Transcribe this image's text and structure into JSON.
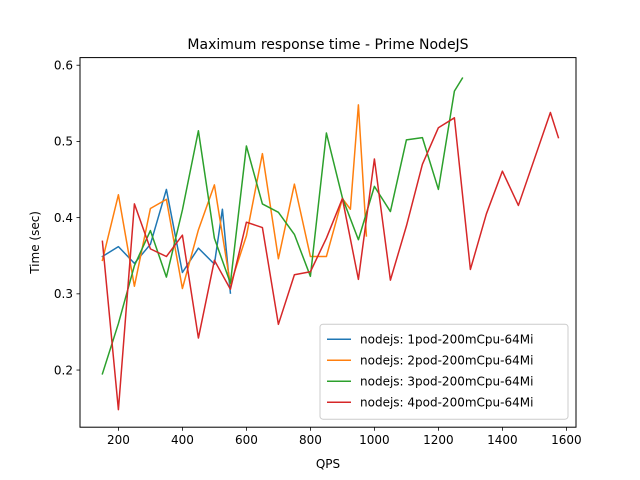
{
  "chart_data": {
    "type": "line",
    "title": "Maximum response time - Prime NodeJS",
    "xlabel": "QPS",
    "ylabel": "Time (sec)",
    "xlim": [
      80,
      1630
    ],
    "ylim": [
      0.125,
      0.61
    ],
    "xticks": [
      200,
      400,
      600,
      800,
      1000,
      1200,
      1400,
      1600
    ],
    "yticks": [
      0.2,
      0.3,
      0.4,
      0.5,
      0.6
    ],
    "grid": false,
    "legend_position": "lower-right",
    "series": [
      {
        "name": "nodejs: 1pod-200mCpu-64Mi",
        "color": "#1f77b4",
        "points": [
          [
            150,
            0.349
          ],
          [
            200,
            0.362
          ],
          [
            250,
            0.34
          ],
          [
            300,
            0.365
          ],
          [
            350,
            0.437
          ],
          [
            400,
            0.328
          ],
          [
            450,
            0.36
          ],
          [
            500,
            0.339
          ],
          [
            525,
            0.411
          ],
          [
            550,
            0.301
          ]
        ]
      },
      {
        "name": "nodejs: 2pod-200mCpu-64Mi",
        "color": "#ff7f0e",
        "points": [
          [
            150,
            0.344
          ],
          [
            200,
            0.43
          ],
          [
            250,
            0.31
          ],
          [
            300,
            0.412
          ],
          [
            350,
            0.424
          ],
          [
            400,
            0.307
          ],
          [
            450,
            0.384
          ],
          [
            500,
            0.443
          ],
          [
            550,
            0.312
          ],
          [
            600,
            0.376
          ],
          [
            650,
            0.484
          ],
          [
            700,
            0.346
          ],
          [
            750,
            0.444
          ],
          [
            800,
            0.349
          ],
          [
            850,
            0.349
          ],
          [
            900,
            0.425
          ],
          [
            925,
            0.411
          ],
          [
            950,
            0.548
          ],
          [
            975,
            0.376
          ]
        ]
      },
      {
        "name": "nodejs: 3pod-200mCpu-64Mi",
        "color": "#2ca02c",
        "points": [
          [
            150,
            0.195
          ],
          [
            200,
            0.261
          ],
          [
            250,
            0.337
          ],
          [
            300,
            0.383
          ],
          [
            350,
            0.322
          ],
          [
            400,
            0.41
          ],
          [
            450,
            0.514
          ],
          [
            500,
            0.373
          ],
          [
            550,
            0.314
          ],
          [
            600,
            0.494
          ],
          [
            650,
            0.418
          ],
          [
            700,
            0.407
          ],
          [
            750,
            0.378
          ],
          [
            800,
            0.323
          ],
          [
            850,
            0.511
          ],
          [
            900,
            0.426
          ],
          [
            950,
            0.371
          ],
          [
            1000,
            0.441
          ],
          [
            1050,
            0.408
          ],
          [
            1100,
            0.502
          ],
          [
            1150,
            0.505
          ],
          [
            1200,
            0.437
          ],
          [
            1250,
            0.566
          ],
          [
            1275,
            0.583
          ]
        ]
      },
      {
        "name": "nodejs: 4pod-200mCpu-64Mi",
        "color": "#d62728",
        "points": [
          [
            150,
            0.369
          ],
          [
            200,
            0.148
          ],
          [
            250,
            0.418
          ],
          [
            300,
            0.359
          ],
          [
            350,
            0.349
          ],
          [
            400,
            0.377
          ],
          [
            450,
            0.242
          ],
          [
            500,
            0.344
          ],
          [
            550,
            0.306
          ],
          [
            600,
            0.394
          ],
          [
            650,
            0.387
          ],
          [
            700,
            0.26
          ],
          [
            750,
            0.325
          ],
          [
            800,
            0.329
          ],
          [
            850,
            0.373
          ],
          [
            900,
            0.425
          ],
          [
            950,
            0.319
          ],
          [
            1000,
            0.477
          ],
          [
            1050,
            0.318
          ],
          [
            1100,
            0.389
          ],
          [
            1150,
            0.47
          ],
          [
            1200,
            0.518
          ],
          [
            1250,
            0.531
          ],
          [
            1300,
            0.332
          ],
          [
            1350,
            0.405
          ],
          [
            1400,
            0.461
          ],
          [
            1450,
            0.416
          ],
          [
            1550,
            0.538
          ],
          [
            1575,
            0.505
          ]
        ]
      }
    ]
  }
}
